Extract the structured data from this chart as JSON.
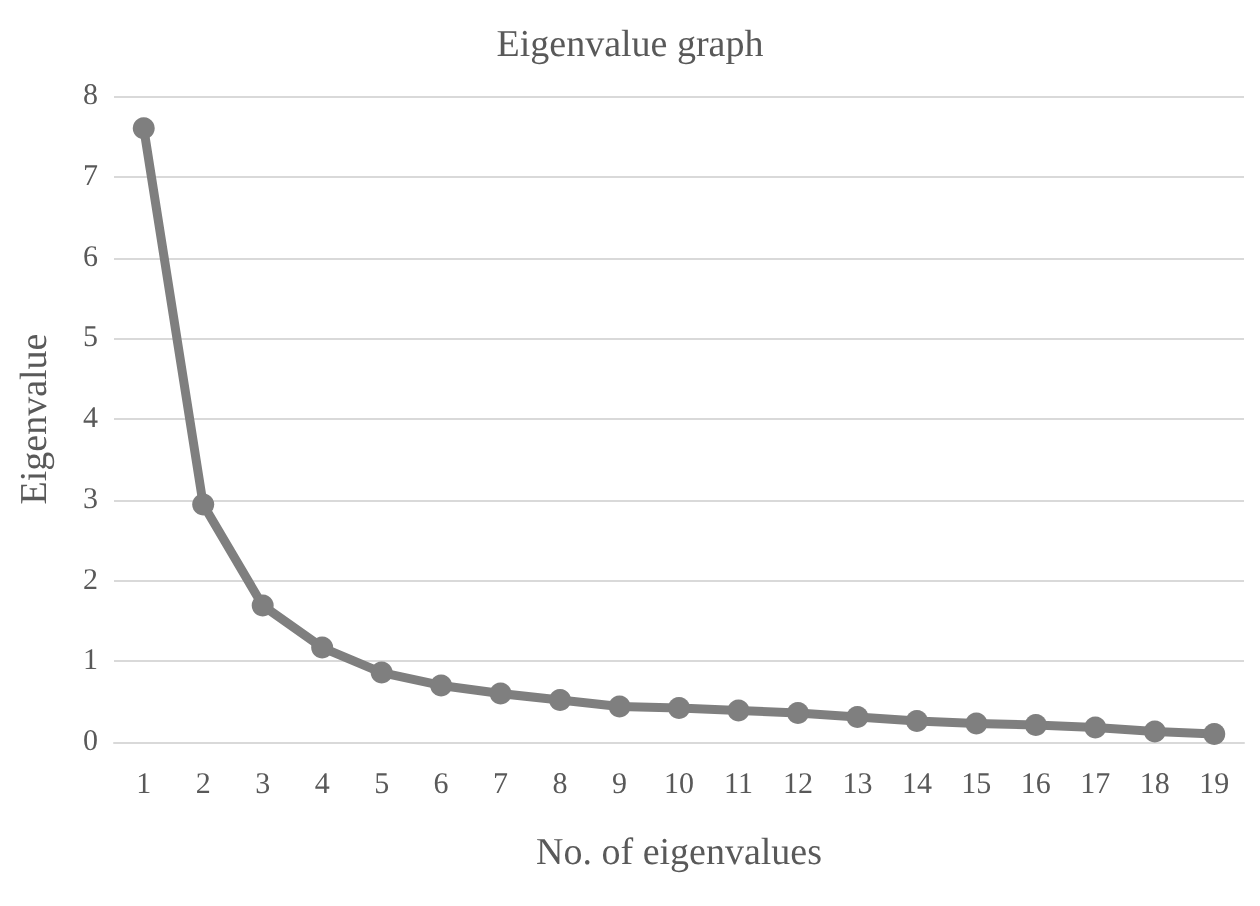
{
  "chart_data": {
    "type": "line",
    "title": "Eigenvalue graph",
    "xlabel": "No. of eigenvalues",
    "ylabel": "Eigenvalue",
    "categories": [
      "1",
      "2",
      "3",
      "4",
      "5",
      "6",
      "7",
      "8",
      "9",
      "10",
      "11",
      "12",
      "13",
      "14",
      "15",
      "16",
      "17",
      "18",
      "19"
    ],
    "series": [
      {
        "color": "#7f7f7f",
        "values": [
          7.6,
          2.94,
          1.69,
          1.17,
          0.86,
          0.7,
          0.6,
          0.52,
          0.44,
          0.42,
          0.39,
          0.36,
          0.31,
          0.26,
          0.23,
          0.21,
          0.18,
          0.13,
          0.1
        ]
      }
    ],
    "ylim": [
      0,
      8
    ],
    "yticks": [
      0,
      1,
      2,
      3,
      4,
      5,
      6,
      7,
      8
    ],
    "grid": "y",
    "marker": "circle",
    "line_style": "solid"
  }
}
